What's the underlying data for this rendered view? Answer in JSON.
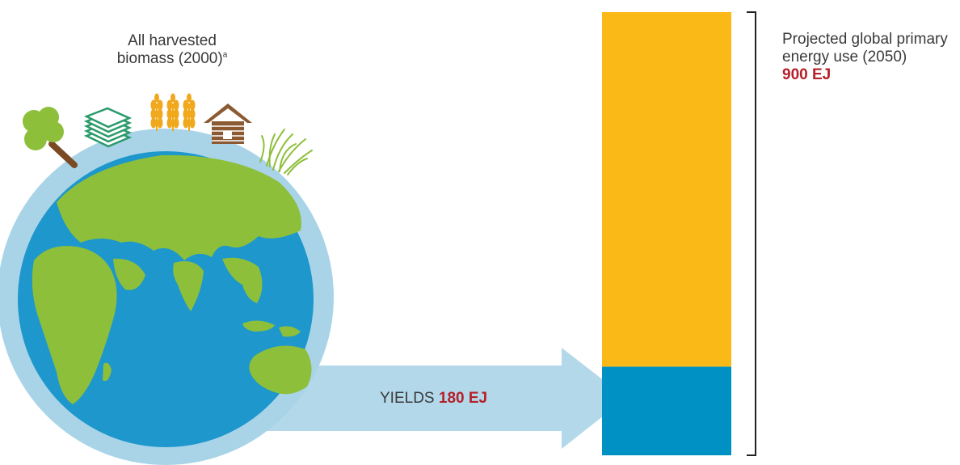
{
  "biomass": {
    "label_line1": "All harvested",
    "label_line2": "biomass (2000)",
    "footnote_mark": "a",
    "icons": [
      "tree-icon",
      "paper-stack-icon",
      "wheat-icon",
      "house-icon",
      "grass-icon"
    ]
  },
  "yields": {
    "prefix": "YIELDS",
    "value": "180 EJ"
  },
  "projected": {
    "label_line1": "Projected global primary",
    "label_line2": "energy use (2050)",
    "value": "900 EJ"
  },
  "chart_data": {
    "type": "bar",
    "total": 900,
    "segments": [
      {
        "value": 180,
        "color": "#0091c4"
      },
      {
        "value": 720,
        "color": "#fbb917"
      }
    ]
  },
  "colors": {
    "globe_ring": "#a9d4e8",
    "ocean": "#1d97cc",
    "land": "#8dbf3b",
    "arrow": "#b3d8ea",
    "bar_bottom": "#0091c4",
    "bar_top": "#fbb917",
    "accent_red": "#b5202a"
  }
}
